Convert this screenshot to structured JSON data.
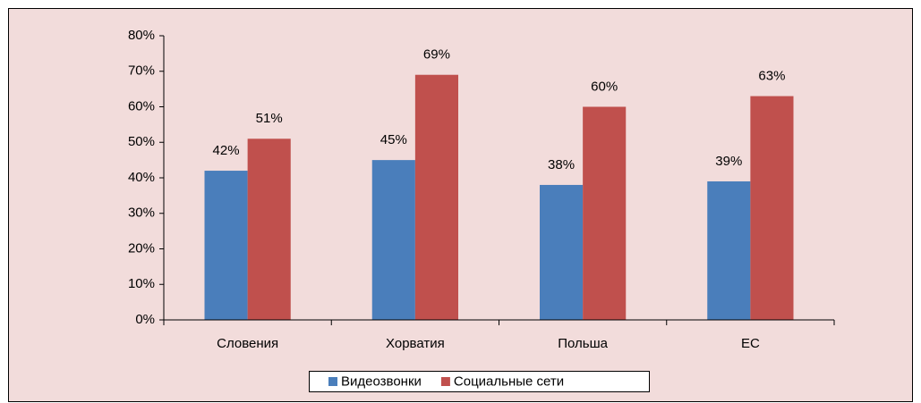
{
  "chart_data": {
    "type": "bar",
    "categories": [
      "Словения",
      "Хорватия",
      "Польша",
      "ЕС"
    ],
    "series": [
      {
        "name": "Видеозвонки",
        "color": "#4a7ebb",
        "values": [
          42,
          45,
          38,
          39
        ],
        "value_labels": [
          "42%",
          "45%",
          "38%",
          "39%"
        ]
      },
      {
        "name": "Социальные сети",
        "color": "#c0504d",
        "values": [
          51,
          69,
          60,
          63
        ],
        "value_labels": [
          "51%",
          "69%",
          "60%",
          "63%"
        ]
      }
    ],
    "ylim": [
      0,
      80
    ],
    "yticks": [
      {
        "value": 0,
        "label": "0%"
      },
      {
        "value": 10,
        "label": "10%"
      },
      {
        "value": 20,
        "label": "20%"
      },
      {
        "value": 30,
        "label": "30%"
      },
      {
        "value": 40,
        "label": "40%"
      },
      {
        "value": 50,
        "label": "50%"
      },
      {
        "value": 60,
        "label": "60%"
      },
      {
        "value": 70,
        "label": "70%"
      },
      {
        "value": 80,
        "label": "80%"
      }
    ],
    "grid": false,
    "legend": "bottom"
  }
}
